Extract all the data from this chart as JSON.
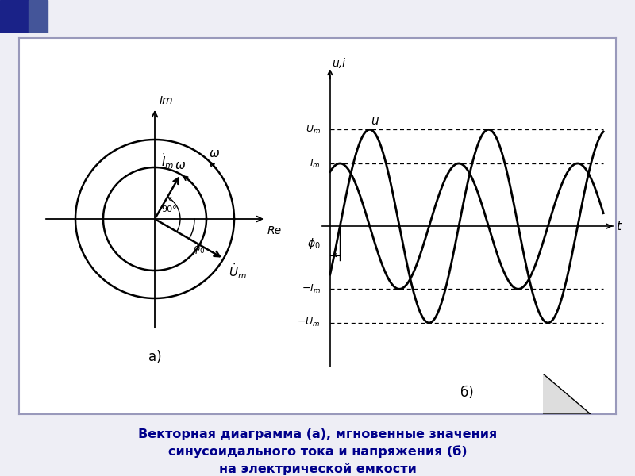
{
  "bg_color": "#eeeef5",
  "panel_color": "#ffffff",
  "panel_border_color": "#9999bb",
  "caption_color": "#00008B",
  "caption_text": "Векторная диаграмма (а), мгновенные значения\nсинусоидального тока и напряжения (б)\nна электрической емкости",
  "Um": 1.0,
  "Im": 0.65,
  "phi0_deg": -30,
  "label_a": "а)",
  "label_b": "б)",
  "header_color": "#8899cc",
  "header_dark": "#2233aa"
}
